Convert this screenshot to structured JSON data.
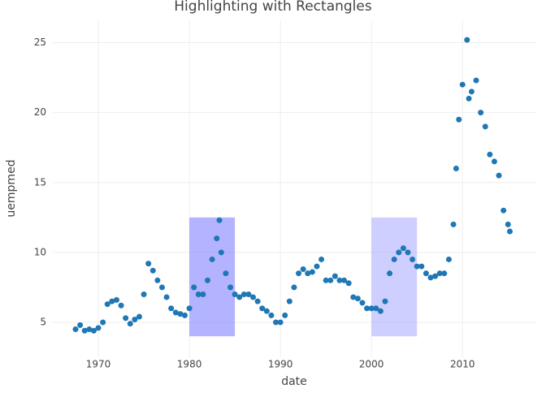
{
  "chart_data": {
    "type": "scatter",
    "title": "Highlighting with Rectangles",
    "x_label": "date",
    "y_label": "uempmed",
    "x": [
      1967.5,
      1968,
      1968.5,
      1969,
      1969.5,
      1970,
      1970.5,
      1971,
      1971.5,
      1972,
      1972.5,
      1973,
      1973.5,
      1974,
      1974.5,
      1975,
      1975.5,
      1976,
      1976.5,
      1977,
      1977.5,
      1978,
      1978.5,
      1979,
      1979.5,
      1980,
      1980.5,
      1981,
      1981.5,
      1982,
      1982.5,
      1983,
      1983.3,
      1983.5,
      1984,
      1984.5,
      1985,
      1985.5,
      1986,
      1986.5,
      1987,
      1987.5,
      1988,
      1988.5,
      1989,
      1989.5,
      1990,
      1990.5,
      1991,
      1991.5,
      1992,
      1992.5,
      1993,
      1993.5,
      1994,
      1994.5,
      1995,
      1995.5,
      1996,
      1996.5,
      1997,
      1997.5,
      1998,
      1998.5,
      1999,
      1999.5,
      2000,
      2000.5,
      2001,
      2001.5,
      2002,
      2002.5,
      2003,
      2003.5,
      2004,
      2004.5,
      2005,
      2005.5,
      2006,
      2006.5,
      2007,
      2007.5,
      2008,
      2008.5,
      2009,
      2009.3,
      2009.6,
      2010,
      2010.5,
      2010.7,
      2011,
      2011.5,
      2012,
      2012.5,
      2013,
      2013.5,
      2014,
      2014.5,
      2015,
      2015.2
    ],
    "series": [
      {
        "color": "#1f77b4",
        "values": [
          4.5,
          4.8,
          4.4,
          4.5,
          4.4,
          4.6,
          5.0,
          6.3,
          6.5,
          6.6,
          6.2,
          5.3,
          4.9,
          5.2,
          5.4,
          7.0,
          9.2,
          8.7,
          8.0,
          7.5,
          6.8,
          6.0,
          5.7,
          5.6,
          5.5,
          6.0,
          7.5,
          7.0,
          7.0,
          8.0,
          9.5,
          11.0,
          12.3,
          10.0,
          8.5,
          7.5,
          7.0,
          6.8,
          7.0,
          7.0,
          6.8,
          6.5,
          6.0,
          5.8,
          5.5,
          5.0,
          5.0,
          5.5,
          6.5,
          7.5,
          8.5,
          8.8,
          8.5,
          8.6,
          9.0,
          9.5,
          8.0,
          8.0,
          8.3,
          8.0,
          8.0,
          7.8,
          6.8,
          6.7,
          6.4,
          6.0,
          6.0,
          6.0,
          5.8,
          6.5,
          8.5,
          9.5,
          10.0,
          10.3,
          10.0,
          9.5,
          9.0,
          9.0,
          8.5,
          8.2,
          8.3,
          8.5,
          8.5,
          9.5,
          12.0,
          16.0,
          19.5,
          22.0,
          25.2,
          21.0,
          21.5,
          22.3,
          20.0,
          19.0,
          17.0,
          16.5,
          15.5,
          13.0,
          12.0,
          11.5
        ]
      }
    ],
    "shapes": [
      {
        "x0": 1980,
        "x1": 1985,
        "y0": 4,
        "y1": 12.5,
        "color": "#8080ff",
        "opacity": 0.6
      },
      {
        "x0": 2000,
        "x1": 2005,
        "y0": 4,
        "y1": 12.5,
        "color": "#a0a0ff",
        "opacity": 0.5
      }
    ],
    "xlim": [
      1965,
      2018.1
    ],
    "ylim": [
      2.5,
      26.6
    ],
    "xticks": [
      1970,
      1980,
      1990,
      2000,
      2010
    ],
    "yticks": [
      5,
      10,
      15,
      20,
      25
    ],
    "grid": true
  }
}
